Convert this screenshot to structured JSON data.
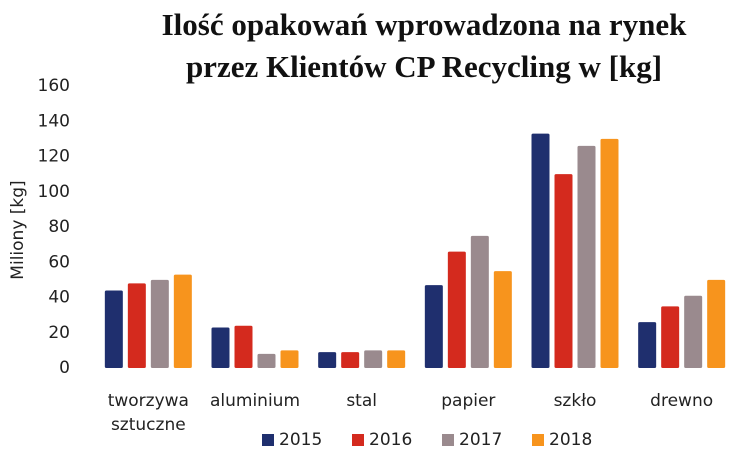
{
  "chart_data": {
    "type": "bar",
    "title": [
      "Ilość opakowań wprowadzona na rynek",
      "przez Klientów CP Recycling w [kg]"
    ],
    "ylabel": "Miliony [kg]",
    "categories": [
      "tworzywa sztuczne",
      "aluminium",
      "stal",
      "papier",
      "szkło",
      "drewno"
    ],
    "series": [
      {
        "name": "2015",
        "color": "#1f2f6e",
        "values": [
          44,
          23,
          9,
          47,
          133,
          26
        ]
      },
      {
        "name": "2016",
        "color": "#d42a1e",
        "values": [
          48,
          24,
          9,
          66,
          110,
          35
        ]
      },
      {
        "name": "2017",
        "color": "#9a8a8e",
        "values": [
          50,
          8,
          10,
          75,
          126,
          41
        ]
      },
      {
        "name": "2018",
        "color": "#f7941d",
        "values": [
          53,
          10,
          10,
          55,
          130,
          50
        ]
      }
    ],
    "ylim": [
      0,
      160
    ],
    "yticks": [
      0,
      20,
      40,
      60,
      80,
      100,
      120,
      140,
      160
    ],
    "grid": false,
    "legend": "bottom"
  }
}
